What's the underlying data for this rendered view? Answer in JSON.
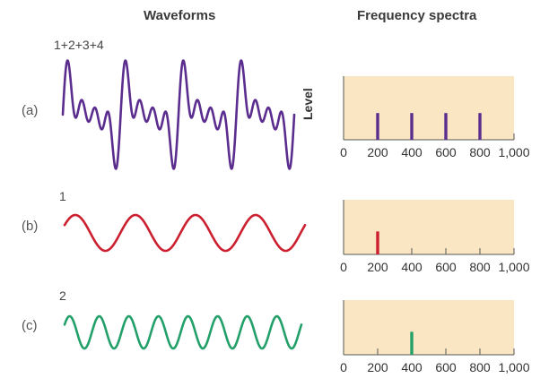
{
  "headers": {
    "waveforms": "Waveforms",
    "spectra": "Frequency spectra"
  },
  "y_label": "Level",
  "colors": {
    "purple": "#5b2d8e",
    "red": "#cc1f2f",
    "green": "#23a06a",
    "panel": "#fbe6c4"
  },
  "rows": [
    {
      "label": "(a)",
      "wave_label": "1+2+3+4",
      "color": "#5b2d8e"
    },
    {
      "label": "(b)",
      "wave_label": "1",
      "color": "#cc1f2f"
    },
    {
      "label": "(c)",
      "wave_label": "2",
      "color": "#23a06a"
    }
  ],
  "chart_data": [
    {
      "type": "bar",
      "panel": "a",
      "xlabel": "",
      "ylabel": "Level",
      "x_ticks": [
        "0",
        "200",
        "400",
        "600",
        "800",
        "1,000"
      ],
      "xlim": [
        0,
        1000
      ],
      "x": [
        200,
        400,
        600,
        800
      ],
      "values": [
        1,
        1,
        1,
        1
      ]
    },
    {
      "type": "bar",
      "panel": "b",
      "xlabel": "",
      "x_ticks": [
        "0",
        "200",
        "400",
        "600",
        "800",
        "1,000"
      ],
      "xlim": [
        0,
        1000
      ],
      "x": [
        200
      ],
      "values": [
        1
      ]
    },
    {
      "type": "bar",
      "panel": "c",
      "xlabel": "",
      "x_ticks": [
        "0",
        "200",
        "400",
        "600",
        "800",
        "1,000"
      ],
      "xlim": [
        0,
        1000
      ],
      "x": [
        400
      ],
      "values": [
        1
      ]
    }
  ]
}
